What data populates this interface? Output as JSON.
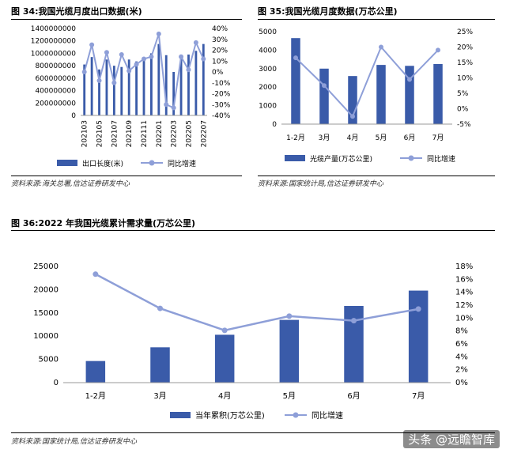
{
  "panels": [
    {
      "title": "图 34:我国光缆月度出口数据(米)",
      "source": "资料来源:海关总署,信达证券研发中心",
      "legend": {
        "bar": "出口长度(米)",
        "line": "同比增速"
      }
    },
    {
      "title": "图 35:我国光缆月度数据(万芯公里)",
      "source": "资料来源:国家统计局,信达证券研发中心",
      "legend": {
        "bar": "光缆产量(万芯公里)",
        "line": "同比增速"
      }
    },
    {
      "title": "图 36:2022 年我国光缆累计需求量(万芯公里)",
      "source": "资料来源:国家统计局,信达证券研发中心",
      "legend": {
        "bar": "当年累积(万芯公里)",
        "line": "同比增速"
      }
    }
  ],
  "colors": {
    "bar": "#3A5BA9",
    "line": "#8E9FD8"
  },
  "watermark": "头条 @远瞻智库",
  "chart_data": [
    {
      "type": "bar",
      "title": "图 34:我国光缆月度出口数据(米)",
      "x": [
        "202103",
        "202104",
        "202105",
        "202106",
        "202107",
        "202108",
        "202109",
        "202110",
        "202111",
        "202112",
        "202201",
        "202202",
        "202203",
        "202204",
        "202205",
        "202206",
        "202207"
      ],
      "x_tick_labels": [
        "202103",
        "202105",
        "202107",
        "202109",
        "202111",
        "202201",
        "202203",
        "202205",
        "202207"
      ],
      "series": [
        {
          "name": "出口长度(米)",
          "type": "bar",
          "axis": "left",
          "values": [
            820000000,
            940000000,
            740000000,
            900000000,
            800000000,
            780000000,
            900000000,
            870000000,
            880000000,
            1000000000,
            1150000000,
            970000000,
            700000000,
            960000000,
            980000000,
            1040000000,
            1150000000
          ]
        },
        {
          "name": "同比增速",
          "type": "line",
          "axis": "right",
          "values": [
            0.0,
            0.25,
            -0.08,
            0.18,
            -0.1,
            0.16,
            0.01,
            0.07,
            0.12,
            0.14,
            0.35,
            -0.3,
            -0.33,
            0.14,
            0.02,
            0.27,
            0.12
          ]
        }
      ],
      "left_axis": {
        "ylim": [
          0,
          1400000000
        ],
        "ticks": [
          0,
          200000000,
          400000000,
          600000000,
          800000000,
          1000000000,
          1200000000,
          1400000000
        ]
      },
      "right_axis": {
        "ylim": [
          -0.4,
          0.4
        ],
        "ticks": [
          -0.4,
          -0.3,
          -0.2,
          -0.1,
          0.0,
          0.1,
          0.2,
          0.3,
          0.4
        ],
        "format": "percent"
      },
      "legend_position": "bottom"
    },
    {
      "type": "bar",
      "title": "图 35:我国光缆月度数据(万芯公里)",
      "categories": [
        "1-2月",
        "3月",
        "4月",
        "5月",
        "6月",
        "7月"
      ],
      "series": [
        {
          "name": "光缆产量(万芯公里)",
          "type": "bar",
          "axis": "left",
          "values": [
            4650,
            3000,
            2600,
            3200,
            3150,
            3250
          ]
        },
        {
          "name": "同比增速",
          "type": "line",
          "axis": "right",
          "values": [
            0.165,
            0.075,
            -0.025,
            0.2,
            0.095,
            0.19
          ]
        }
      ],
      "left_axis": {
        "ylim": [
          0,
          5000
        ],
        "ticks": [
          0,
          1000,
          2000,
          3000,
          4000,
          5000
        ]
      },
      "right_axis": {
        "ylim": [
          -0.05,
          0.25
        ],
        "ticks": [
          -0.05,
          0.0,
          0.05,
          0.1,
          0.15,
          0.2,
          0.25
        ],
        "format": "percent"
      },
      "legend_position": "bottom"
    },
    {
      "type": "bar",
      "title": "图 36:2022 年我国光缆累计需求量(万芯公里)",
      "categories": [
        "1-2月",
        "3月",
        "4月",
        "5月",
        "6月",
        "7月"
      ],
      "series": [
        {
          "name": "当年累积(万芯公里)",
          "type": "bar",
          "axis": "left",
          "values": [
            4650,
            7600,
            10300,
            13500,
            16500,
            19800
          ]
        },
        {
          "name": "同比增速",
          "type": "line",
          "axis": "right",
          "values": [
            0.168,
            0.115,
            0.081,
            0.103,
            0.096,
            0.114
          ]
        }
      ],
      "left_axis": {
        "ylim": [
          0,
          25000
        ],
        "ticks": [
          0,
          5000,
          10000,
          15000,
          20000,
          25000
        ]
      },
      "right_axis": {
        "ylim": [
          0,
          0.18
        ],
        "ticks": [
          0,
          0.02,
          0.04,
          0.06,
          0.08,
          0.1,
          0.12,
          0.14,
          0.16,
          0.18
        ],
        "format": "percent"
      },
      "legend_position": "bottom"
    }
  ]
}
